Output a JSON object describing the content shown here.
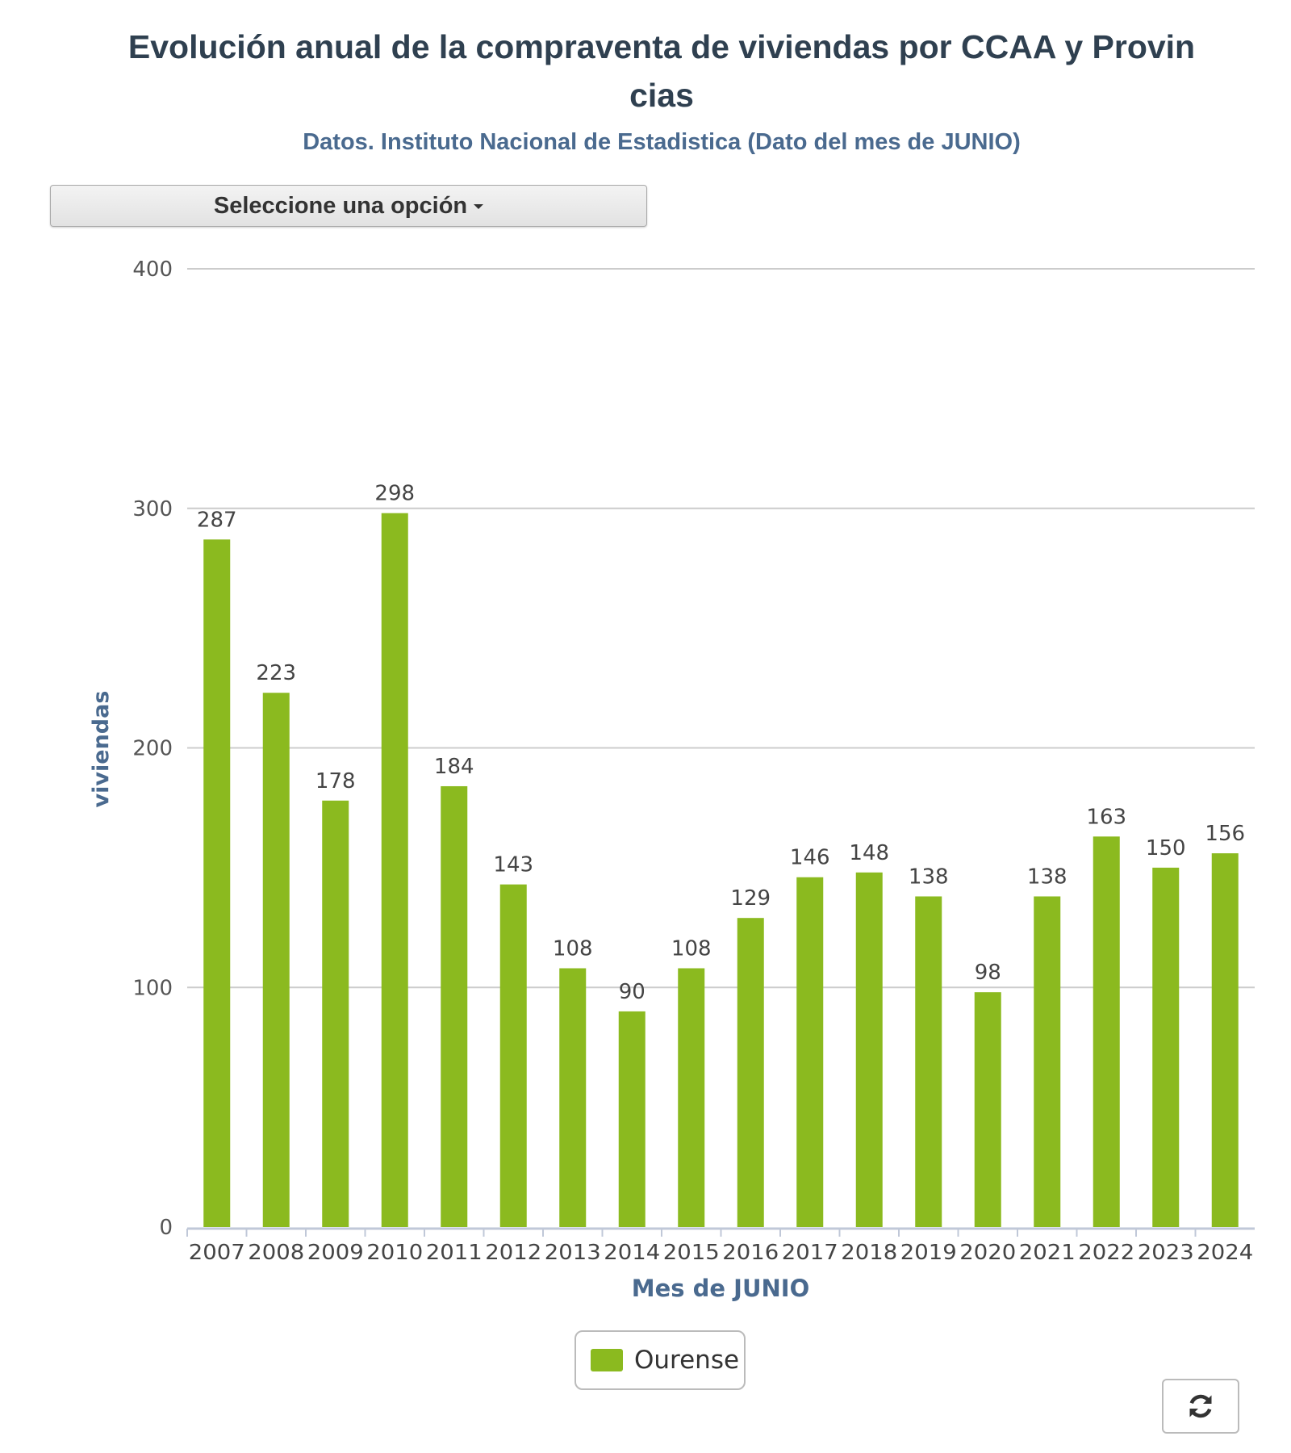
{
  "header": {
    "title": "Evolución anual de la compraventa de viviendas por CCAA y Provincias",
    "title_line1": "Evolución anual de la compraventa de viviendas por CCAA y Provin",
    "title_line2": "cias",
    "subtitle": "Datos. Instituto Nacional de Estadistica (Dato del mes de JUNIO)"
  },
  "controls": {
    "select_label": "Seleccione una opción",
    "refresh_icon": "refresh-icon"
  },
  "colors": {
    "bar": "#8BBA1F",
    "title": "#2f4050",
    "axis_title": "#4a6a8f",
    "grid": "#cccccc"
  },
  "chart_data": {
    "type": "bar",
    "title": "Evolución anual de la compraventa de viviendas por CCAA y Provincias",
    "subtitle": "Datos. Instituto Nacional de Estadistica (Dato del mes de JUNIO)",
    "xlabel": "Mes de JUNIO",
    "ylabel": "viviendas",
    "ylim": [
      0,
      400
    ],
    "yticks": [
      0,
      100,
      200,
      300,
      400
    ],
    "grid": true,
    "legend_position": "bottom",
    "categories": [
      "2007",
      "2008",
      "2009",
      "2010",
      "2011",
      "2012",
      "2013",
      "2014",
      "2015",
      "2016",
      "2017",
      "2018",
      "2019",
      "2020",
      "2021",
      "2022",
      "2023",
      "2024"
    ],
    "series": [
      {
        "name": "Ourense",
        "color": "#8BBA1F",
        "values": [
          287,
          223,
          178,
          298,
          184,
          143,
          108,
          90,
          108,
          129,
          146,
          148,
          138,
          98,
          138,
          163,
          150,
          156
        ]
      }
    ],
    "data_labels": true
  }
}
